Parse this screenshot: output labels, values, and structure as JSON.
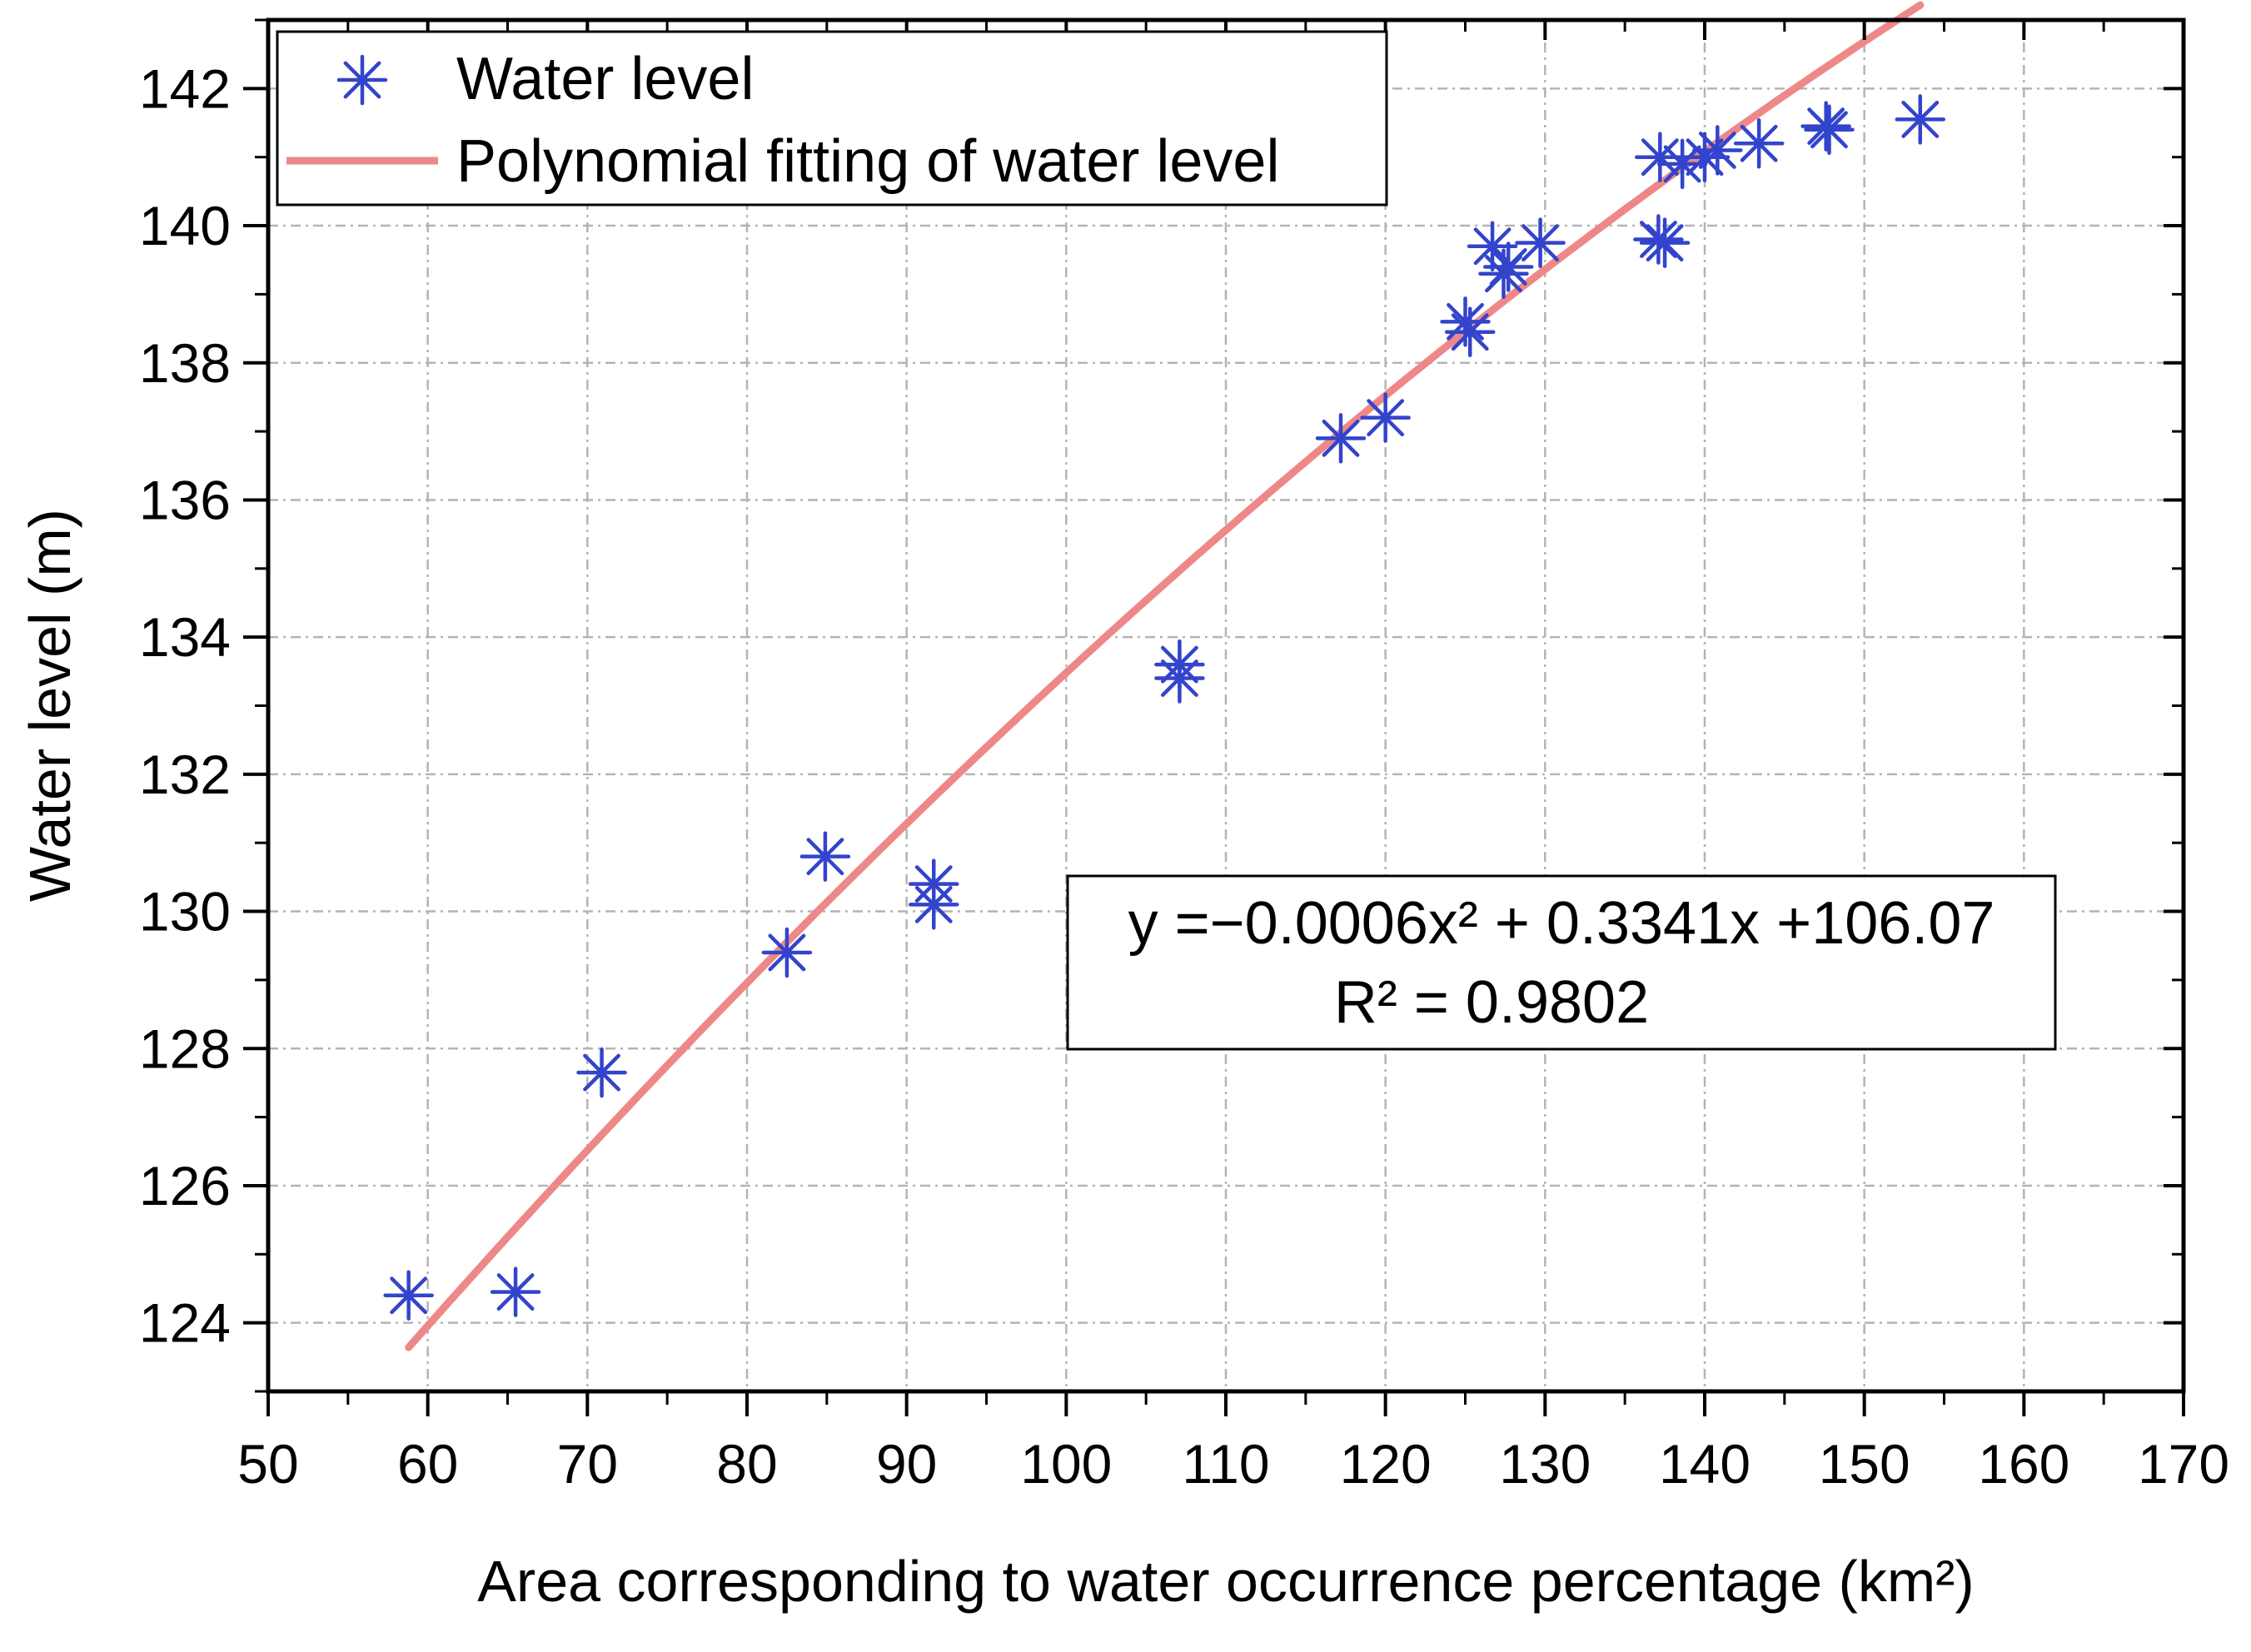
{
  "chart_data": {
    "type": "scatter",
    "title": "",
    "xlabel": "Area corresponding to water occurrence percentage (km²)",
    "ylabel": "Water level (m)",
    "xlim": [
      50,
      170
    ],
    "ylim": [
      123,
      143
    ],
    "x_ticks": [
      50,
      60,
      70,
      80,
      90,
      100,
      110,
      120,
      130,
      140,
      150,
      160,
      170
    ],
    "y_ticks": [
      124,
      126,
      128,
      130,
      132,
      134,
      136,
      138,
      140,
      142
    ],
    "grid": true,
    "legend_position": "top-left",
    "series": [
      {
        "name": "Water level",
        "kind": "scatter",
        "marker": "asterisk",
        "color": "#3344cc",
        "points": [
          [
            58.8,
            124.4
          ],
          [
            65.5,
            124.45
          ],
          [
            70.9,
            127.65
          ],
          [
            82.5,
            129.4
          ],
          [
            84.9,
            130.8
          ],
          [
            91.7,
            130.4
          ],
          [
            91.7,
            130.1
          ],
          [
            107.1,
            133.6
          ],
          [
            107.1,
            133.4
          ],
          [
            117.2,
            136.9
          ],
          [
            120.0,
            137.2
          ],
          [
            125.0,
            138.6
          ],
          [
            125.3,
            138.45
          ],
          [
            126.7,
            139.7
          ],
          [
            127.4,
            139.3
          ],
          [
            127.7,
            139.4
          ],
          [
            129.7,
            139.75
          ],
          [
            137.1,
            139.8
          ],
          [
            137.5,
            139.75
          ],
          [
            137.2,
            141.0
          ],
          [
            138.6,
            140.9
          ],
          [
            140.0,
            141.0
          ],
          [
            140.8,
            141.1
          ],
          [
            143.4,
            141.2
          ],
          [
            147.6,
            141.45
          ],
          [
            147.8,
            141.4
          ],
          [
            153.5,
            141.55
          ]
        ]
      },
      {
        "name": "Polynomial fitting of water level",
        "kind": "fit",
        "color": "#ee8888",
        "coefficients": {
          "a": -0.0006,
          "b": 0.3341,
          "c": 106.07
        },
        "x_range": [
          58.8,
          153.5
        ]
      }
    ],
    "annotation": {
      "equation": "y =−0.0006x² + 0.3341x +106.07",
      "r_squared": "R² = 0.9802"
    }
  }
}
